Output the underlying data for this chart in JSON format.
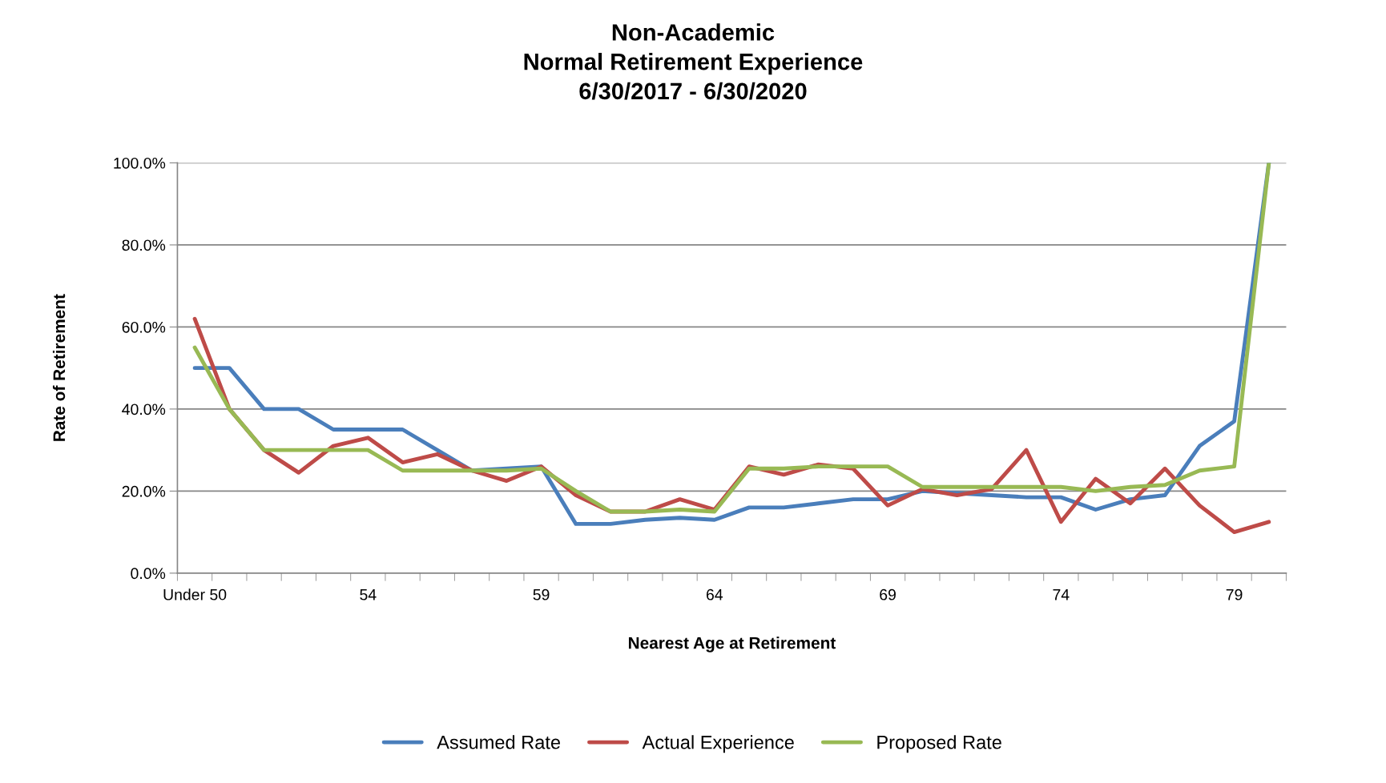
{
  "chart_data": {
    "type": "line",
    "title": "Non-Academic\nNormal Retirement Experience\n6/30/2017 - 6/30/2020",
    "xlabel": "Nearest Age at Retirement",
    "ylabel": "Rate of Retirement",
    "categories": [
      "Under 50",
      null,
      null,
      null,
      null,
      "54",
      null,
      null,
      null,
      null,
      "59",
      null,
      null,
      null,
      null,
      "64",
      null,
      null,
      null,
      null,
      "69",
      null,
      null,
      null,
      null,
      "74",
      null,
      null,
      null,
      null,
      "79",
      null
    ],
    "series": [
      {
        "name": "Assumed Rate",
        "color": "#4a7ebb",
        "values": [
          50,
          50,
          40,
          40,
          35,
          35,
          35,
          30,
          25,
          25.5,
          26,
          12,
          12,
          13,
          13.5,
          13,
          16,
          16,
          17,
          18,
          18,
          20,
          19.5,
          19,
          18.5,
          18.5,
          15.5,
          18,
          19,
          31,
          37,
          100
        ]
      },
      {
        "name": "Actual Experience",
        "color": "#be4b48",
        "values": [
          62,
          40,
          30,
          24.5,
          31,
          33,
          27,
          29,
          25,
          22.5,
          26,
          19,
          15,
          15,
          18,
          15.5,
          26,
          24,
          26.5,
          25.5,
          16.5,
          20.5,
          19,
          20.5,
          30,
          12.5,
          23,
          17,
          25.5,
          16.5,
          10,
          12.5
        ]
      },
      {
        "name": "Proposed Rate",
        "color": "#98b954",
        "values": [
          55,
          40,
          30,
          30,
          30,
          30,
          25,
          25,
          25,
          25,
          25.5,
          20,
          15,
          15,
          15.5,
          15,
          25.5,
          25.5,
          26,
          26,
          26,
          21,
          21,
          21,
          21,
          21,
          20,
          21,
          21.5,
          25,
          26,
          100
        ]
      }
    ],
    "ylim": [
      0,
      100
    ],
    "yticks": [
      {
        "value": 0,
        "label": "0.0%"
      },
      {
        "value": 20,
        "label": "20.0%"
      },
      {
        "value": 40,
        "label": "40.0%"
      },
      {
        "value": 60,
        "label": "60.0%"
      },
      {
        "value": 80,
        "label": "80.0%"
      },
      {
        "value": 100,
        "label": "100.0%"
      }
    ],
    "grid": "y",
    "legend": "bottom",
    "marker": "none",
    "line_style": "solid"
  }
}
